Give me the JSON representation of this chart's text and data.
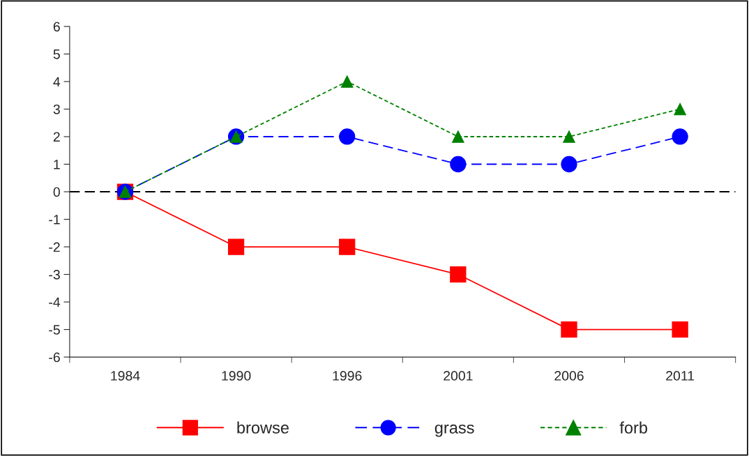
{
  "chart_data": {
    "type": "line",
    "categories": [
      "1984",
      "1990",
      "1996",
      "2001",
      "2006",
      "2011"
    ],
    "series": [
      {
        "name": "browse",
        "color": "#ff0000",
        "marker": "square",
        "line_style": "solid",
        "values": [
          0,
          -2,
          -2,
          -3,
          -5,
          -5
        ]
      },
      {
        "name": "grass",
        "color": "#0000ff",
        "marker": "circle",
        "line_style": "dashed",
        "values": [
          0,
          2,
          2,
          1,
          1,
          2
        ]
      },
      {
        "name": "forb",
        "color": "#008000",
        "marker": "triangle",
        "line_style": "dotted",
        "values": [
          0,
          2,
          4,
          2,
          2,
          3
        ]
      }
    ],
    "ylim": [
      -6,
      6
    ],
    "yticks": [
      -6,
      -5,
      -4,
      -3,
      -2,
      -1,
      0,
      1,
      2,
      3,
      4,
      5,
      6
    ],
    "ref_lines": [
      {
        "axis": "y",
        "value": 0,
        "color": "#000000",
        "line_style": "dashed"
      }
    ],
    "grid": false,
    "legend": "bottom"
  }
}
